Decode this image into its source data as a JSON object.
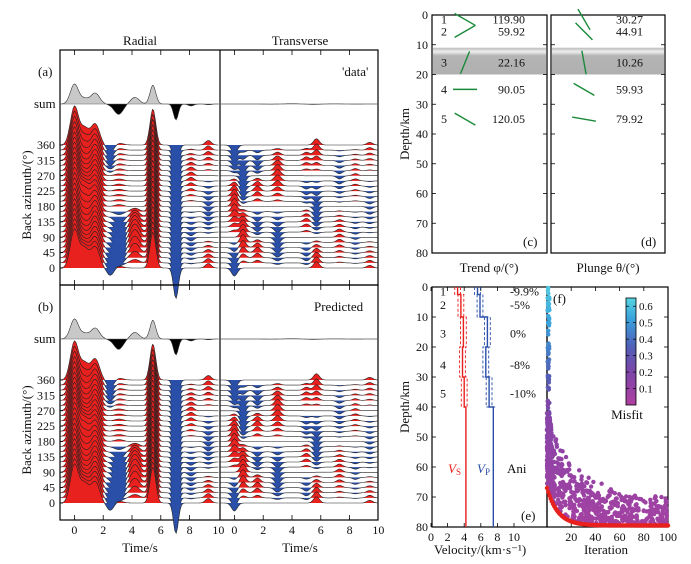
{
  "chart_data": [
    {
      "id": "a",
      "type": "area",
      "panel_label": "(a)",
      "annotation": "'data'",
      "columns": [
        "Radial",
        "Transverse"
      ],
      "sum_label": "sum",
      "ylabel": "Back azimuth/(°)",
      "yticks": [
        "360",
        "315",
        "270",
        "225",
        "180",
        "135",
        "90",
        "45",
        "0"
      ],
      "xlabel": "Time/s",
      "xticks": [
        "0",
        "2",
        "4",
        "6",
        "8",
        "10"
      ],
      "xlim": [
        -1,
        10
      ],
      "n_traces": 25,
      "colors": {
        "positive": "#e8201e",
        "negative": "#2a4fa8",
        "sum_positive": "#c8c8c8",
        "sum_negative": "#000000"
      },
      "radial_sum_peaks": [
        {
          "t": 0,
          "a": 1.0
        },
        {
          "t": 1.4,
          "a": 0.45
        },
        {
          "t": 5.5,
          "a": 0.9
        },
        {
          "t": 2.9,
          "a": -0.15
        },
        {
          "t": 4.5,
          "a": 0.08
        },
        {
          "t": 7.0,
          "a": -0.45
        }
      ]
    },
    {
      "id": "b",
      "type": "area",
      "panel_label": "(b)",
      "annotation": "Predicted",
      "columns": [
        "Radial",
        "Transverse"
      ],
      "sum_label": "sum",
      "ylabel": "Back azimuth/(°)",
      "yticks": [
        "360",
        "315",
        "270",
        "225",
        "180",
        "135",
        "90",
        "45",
        "0"
      ],
      "xlabel": "Time/s",
      "xticks": [
        "0",
        "2",
        "4",
        "6",
        "8",
        "10"
      ],
      "xlim": [
        -1,
        10
      ],
      "n_traces": 25
    },
    {
      "id": "c",
      "type": "scatter",
      "panel_label": "(c)",
      "xlabel": "Trend φ/(°)",
      "ylabel": "Depth/km",
      "ylim": [
        0,
        80
      ],
      "yticks": [
        "0",
        "10",
        "20",
        "30",
        "40",
        "50",
        "60",
        "70",
        "80"
      ],
      "layers": [
        {
          "n": "1",
          "depth": 1.5,
          "value": "119.90",
          "angle": 119.9
        },
        {
          "n": "2",
          "depth": 5.5,
          "value": "59.92",
          "angle": 59.92
        },
        {
          "n": "3",
          "depth": 16,
          "value": "22.16",
          "angle": 22.16
        },
        {
          "n": "4",
          "depth": 25,
          "value": "90.05",
          "angle": 90.05
        },
        {
          "n": "5",
          "depth": 35,
          "value": "120.05",
          "angle": 120.05
        }
      ],
      "shaded_depth": [
        11,
        20
      ]
    },
    {
      "id": "d",
      "type": "scatter",
      "panel_label": "(d)",
      "xlabel": "Plunge θ/(°)",
      "ylim": [
        0,
        80
      ],
      "layers": [
        {
          "depth": 1.5,
          "value": "30.27",
          "angle": 30.27
        },
        {
          "depth": 5.5,
          "value": "44.91",
          "angle": 44.91
        },
        {
          "depth": 16,
          "value": "10.26",
          "angle": 10.26
        },
        {
          "depth": 25,
          "value": "59.93",
          "angle": 59.93
        },
        {
          "depth": 35,
          "value": "79.92",
          "angle": 79.92
        }
      ],
      "shaded_depth": [
        11,
        20
      ]
    },
    {
      "id": "e",
      "type": "line",
      "panel_label": "(e)",
      "xlabel": "Velocity/(km·s⁻¹)",
      "ylabel": "Depth/km",
      "xlim": [
        0,
        14
      ],
      "xticks": [
        "0",
        "2",
        "4",
        "6",
        "8",
        "10"
      ],
      "ylim": [
        0,
        80
      ],
      "yticks": [
        "0",
        "10",
        "20",
        "30",
        "40",
        "50",
        "60",
        "70",
        "80"
      ],
      "layer_labels": [
        "1",
        "2",
        "3",
        "4",
        "5"
      ],
      "anisotropy": [
        "-9.9%",
        "-5%",
        "0%",
        "-8%",
        "-10%"
      ],
      "ani_label": "Ani",
      "vs_label": "V",
      "vs_sub": "S",
      "vp_label": "V",
      "vp_sub": "P",
      "series": [
        {
          "name": "Vs",
          "color": "#e8201e",
          "depths": [
            0,
            2.5,
            2.5,
            10,
            10,
            20,
            20,
            30,
            30,
            40,
            40,
            80
          ],
          "values": [
            3.2,
            3.2,
            3.6,
            3.6,
            3.9,
            3.9,
            3.8,
            3.8,
            4.0,
            4.0,
            4.2,
            4.2
          ]
        },
        {
          "name": "Vp",
          "color": "#2a4fa8",
          "depths": [
            0,
            2.5,
            2.5,
            10,
            10,
            20,
            20,
            30,
            30,
            40,
            40,
            80
          ],
          "values": [
            5.6,
            5.6,
            5.9,
            5.9,
            6.8,
            6.8,
            6.6,
            6.6,
            7.0,
            7.0,
            7.5,
            7.5
          ]
        }
      ]
    },
    {
      "id": "f",
      "type": "scatter",
      "panel_label": "(f)",
      "xlabel": "Iteration",
      "xlim": [
        0,
        100
      ],
      "xticks": [
        "20",
        "40",
        "60",
        "80",
        "100"
      ],
      "colorbar": {
        "label": "Misfit",
        "ticks": [
          "0.6",
          "0.5",
          "0.4",
          "0.3",
          "0.2",
          "0.1"
        ],
        "range": [
          0.0,
          0.65
        ],
        "colors": [
          "#b040a0",
          "#7e45a8",
          "#5060b8",
          "#3aa0dc",
          "#50d0e0"
        ]
      },
      "best_color": "#e8201e"
    }
  ]
}
